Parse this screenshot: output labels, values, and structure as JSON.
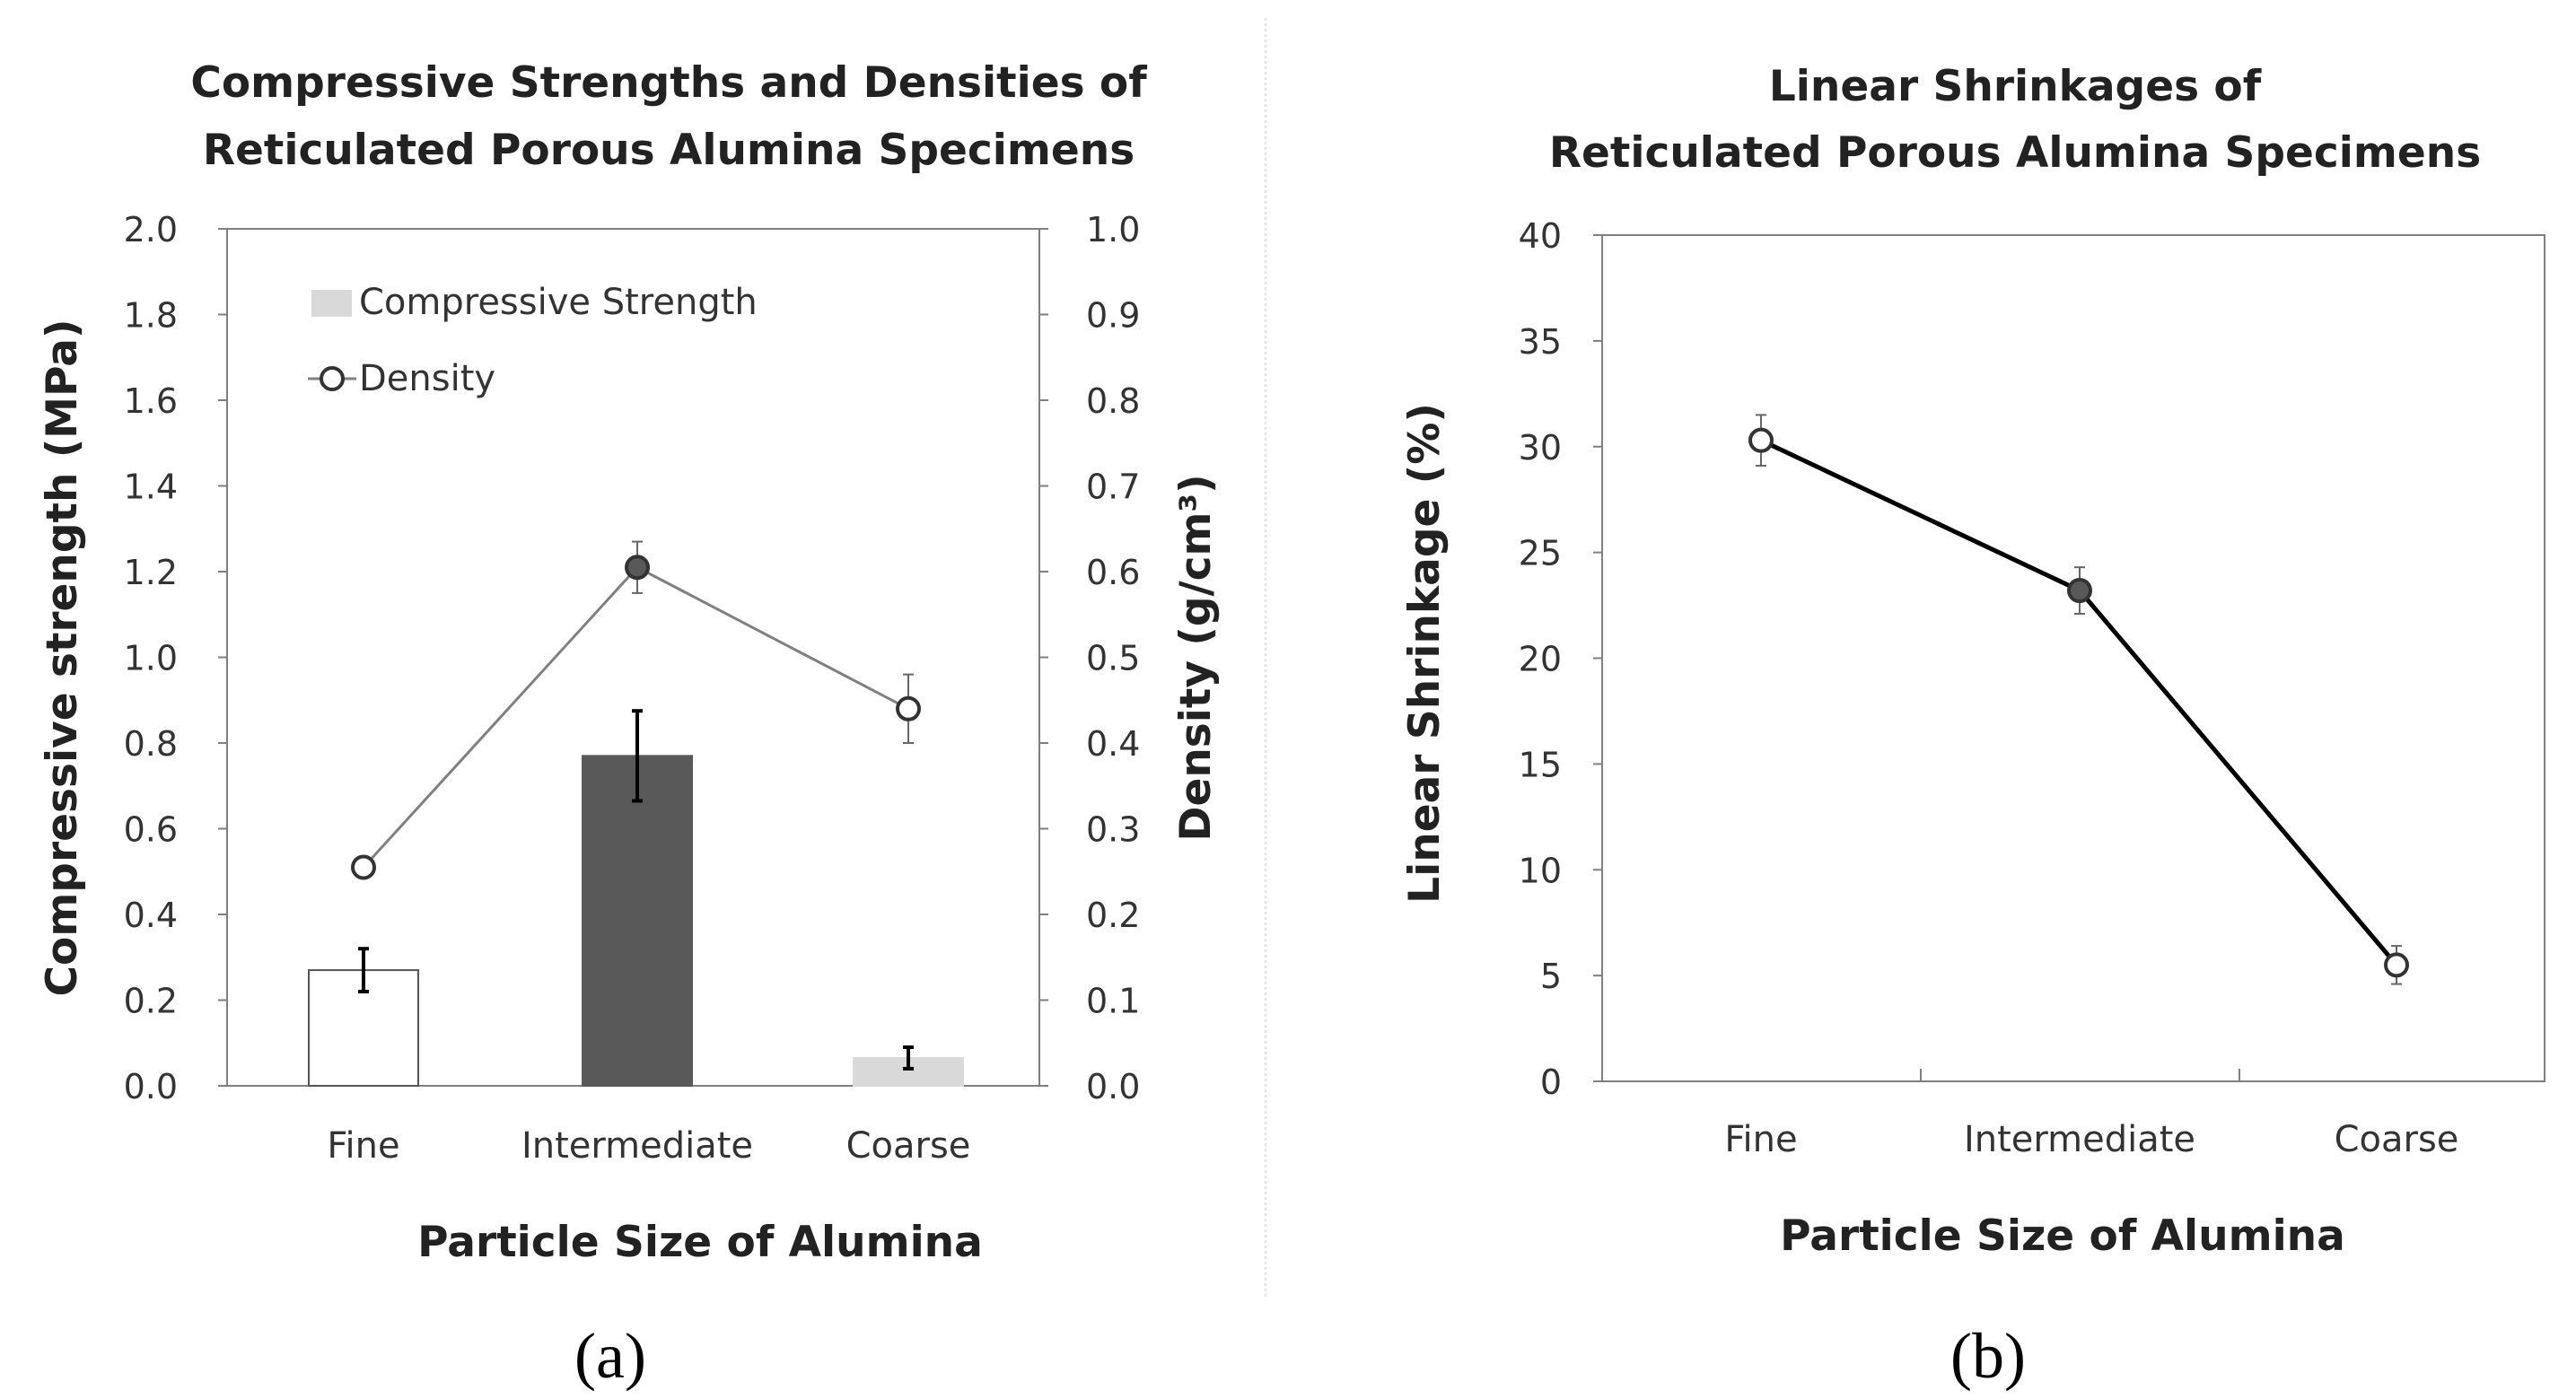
{
  "chart_data": [
    {
      "type": "bar",
      "panel_label": "(a)",
      "title_lines": [
        "Compressive Strengths and Densities of",
        "Reticulated Porous Alumina Specimens"
      ],
      "xlabel": "Particle Size of Alumina",
      "ylabel": "Compressive strength (MPa)",
      "y2label": "Density (g/cm³)",
      "categories": [
        "Fine",
        "Intermediate",
        "Coarse"
      ],
      "ylim": [
        0,
        2.0
      ],
      "y2lim": [
        0,
        1.0
      ],
      "yticks": [
        "0.0",
        "0.2",
        "0.4",
        "0.6",
        "0.8",
        "1.0",
        "1.2",
        "1.4",
        "1.6",
        "1.8",
        "2.0"
      ],
      "y2ticks": [
        "0.0",
        "0.1",
        "0.2",
        "0.3",
        "0.4",
        "0.5",
        "0.6",
        "0.7",
        "0.8",
        "0.9",
        "1.0"
      ],
      "legend": [
        {
          "label": "Compressive Strength",
          "marker": "bar"
        },
        {
          "label": "Density",
          "marker": "line-circle"
        }
      ],
      "legend_position": "top-left",
      "series": [
        {
          "name": "Compressive Strength",
          "kind": "bar",
          "axis": "left",
          "values": [
            0.27,
            0.77,
            0.065
          ],
          "errors": [
            0.05,
            0.105,
            0.025
          ],
          "colors": [
            "#ffffff",
            "#595959",
            "#d9d9d9"
          ]
        },
        {
          "name": "Density",
          "kind": "line",
          "axis": "right",
          "values": [
            0.255,
            0.605,
            0.44
          ],
          "errors": [
            0.005,
            0.03,
            0.04
          ]
        }
      ],
      "grid": false
    },
    {
      "type": "line",
      "panel_label": "(b)",
      "title_lines": [
        "Linear Shrinkages of",
        "Reticulated Porous Alumina Specimens"
      ],
      "xlabel": "Particle Size of Alumina",
      "ylabel": "Linear Shrinkage (%)",
      "categories": [
        "Fine",
        "Intermediate",
        "Coarse"
      ],
      "ylim": [
        0,
        40
      ],
      "yticks": [
        "0",
        "5",
        "10",
        "15",
        "20",
        "25",
        "30",
        "35",
        "40"
      ],
      "series": [
        {
          "kind": "line",
          "values": [
            30.3,
            23.2,
            5.5
          ],
          "errors": [
            1.2,
            1.1,
            0.9
          ]
        }
      ],
      "grid": false
    }
  ],
  "colors": {
    "axis": "#7f7f7f",
    "text": "#222222",
    "density_line": "#808080",
    "density_marker_highlight": "#595959",
    "shrinkage_line": "#000000",
    "shrinkage_marker_highlight": "#595959"
  }
}
